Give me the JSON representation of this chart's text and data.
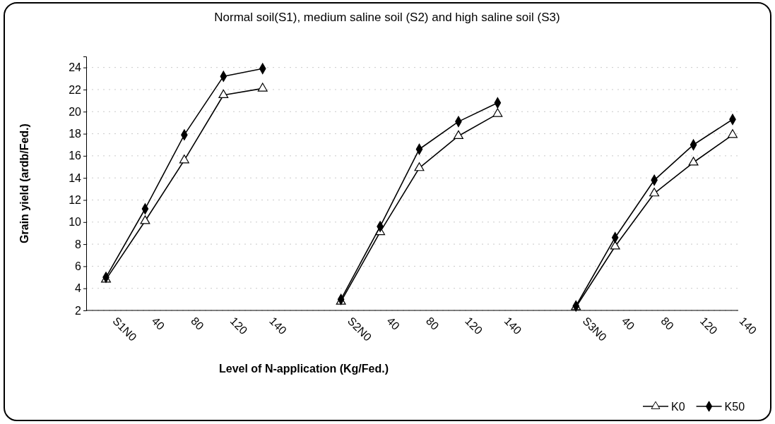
{
  "chart_data": {
    "type": "line",
    "title": "Normal soil(S1), medium saline soil (S2) and high saline soil (S3)",
    "xlabel": "Level of N-application (Kg/Fed.)",
    "ylabel": "Grain yield (ardb/Fed.)",
    "categories": [
      "S1N0",
      "40",
      "80",
      "120",
      "140",
      null,
      "S2N0",
      "40",
      "80",
      "120",
      "140",
      null,
      "S3N0",
      "40",
      "80",
      "120",
      "140"
    ],
    "series": [
      {
        "name": "K0",
        "color": "#000000",
        "marker": "triangle",
        "values": [
          4.8,
          10.1,
          15.6,
          21.5,
          22.1,
          null,
          2.8,
          9.1,
          14.9,
          17.8,
          19.8,
          null,
          2.3,
          7.8,
          12.6,
          15.4,
          17.9
        ]
      },
      {
        "name": "K50",
        "color": "#000000",
        "marker": "diamond",
        "values": [
          5.0,
          11.2,
          17.9,
          23.2,
          23.9,
          null,
          3.0,
          9.6,
          16.6,
          19.1,
          20.8,
          null,
          2.4,
          8.6,
          13.8,
          17.0,
          19.3
        ]
      }
    ],
    "ylim": [
      2,
      25
    ],
    "yticks": [
      2,
      4,
      6,
      8,
      10,
      12,
      14,
      16,
      18,
      20,
      22,
      24
    ],
    "grid": "y",
    "legend": "bottom right"
  }
}
